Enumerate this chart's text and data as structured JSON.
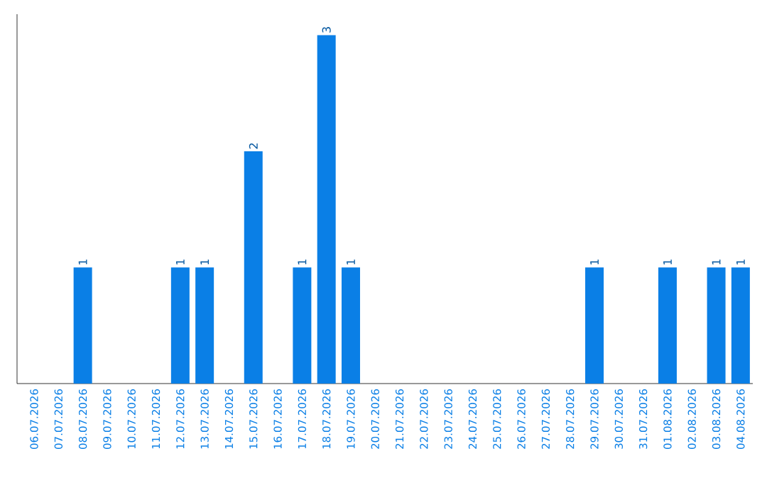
{
  "chart_data": {
    "type": "bar",
    "categories": [
      "06.07.2026",
      "07.07.2026",
      "08.07.2026",
      "09.07.2026",
      "10.07.2026",
      "11.07.2026",
      "12.07.2026",
      "13.07.2026",
      "14.07.2026",
      "15.07.2026",
      "16.07.2026",
      "17.07.2026",
      "18.07.2026",
      "19.07.2026",
      "20.07.2026",
      "21.07.2026",
      "22.07.2026",
      "23.07.2026",
      "24.07.2026",
      "25.07.2026",
      "26.07.2026",
      "27.07.2026",
      "28.07.2026",
      "29.07.2026",
      "30.07.2026",
      "31.07.2026",
      "01.08.2026",
      "02.08.2026",
      "03.08.2026",
      "04.08.2026"
    ],
    "values": [
      0,
      0,
      1,
      0,
      0,
      0,
      1,
      1,
      0,
      2,
      0,
      1,
      3,
      1,
      0,
      0,
      0,
      0,
      0,
      0,
      0,
      0,
      0,
      1,
      0,
      0,
      1,
      0,
      1,
      1
    ],
    "value_labels": [
      null,
      null,
      "1",
      null,
      null,
      null,
      "1",
      "1",
      null,
      "2",
      null,
      "1",
      "3",
      "1",
      null,
      null,
      null,
      null,
      null,
      null,
      null,
      null,
      null,
      "1",
      null,
      null,
      "1",
      null,
      "1",
      "1"
    ],
    "color": "#0a7fe6"
  }
}
